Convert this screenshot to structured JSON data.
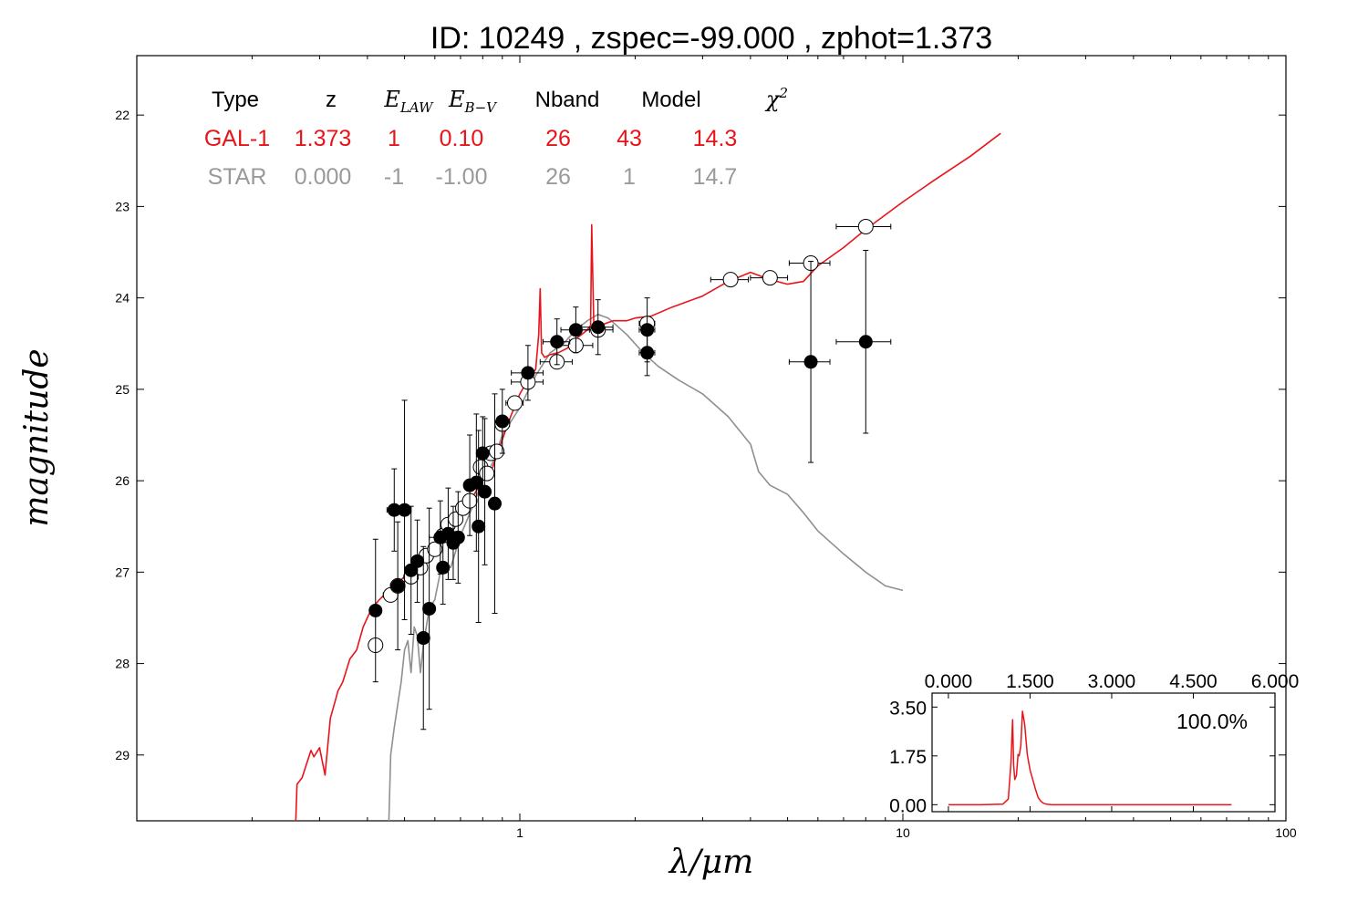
{
  "chart_data": [
    {
      "type": "scatter",
      "title": "ID:  10249 , zspec=-99.000 , zphot=1.373",
      "xlabel": "λ/μm",
      "ylabel": "magnitude",
      "xscale": "log",
      "xlim": [
        0.1,
        100
      ],
      "ylim": [
        29.72,
        21.35
      ],
      "x_tick_labels": [
        {
          "v": 1,
          "label": "1"
        },
        {
          "v": 10,
          "label": "10"
        },
        {
          "v": 100,
          "label": "100"
        }
      ],
      "y_ticks": [
        22,
        23,
        24,
        25,
        26,
        27,
        28,
        29
      ],
      "colors": {
        "galaxy": "#e8141a",
        "star": "#8f8f8f",
        "axes": "#000000"
      },
      "table": {
        "headers": [
          {
            "text": "Type",
            "math": false
          },
          {
            "text": "z",
            "math": false
          },
          {
            "text": "E",
            "sub": "LAW",
            "math": true
          },
          {
            "text": "E",
            "sub": "B−V",
            "math": true
          },
          {
            "text": "Nband",
            "math": false
          },
          {
            "text": "Model",
            "math": false
          },
          {
            "text": "χ",
            "sup": "2",
            "math": true
          }
        ],
        "rows": [
          {
            "color": "#e8141a",
            "cells": [
              "GAL-1",
              "1.373",
              "1",
              "0.10",
              "26",
              "43",
              "14.3"
            ]
          },
          {
            "color": "#9a9a9a",
            "cells": [
              "STAR",
              "0.000",
              "-1",
              "-1.00",
              "26",
              "1",
              "14.7"
            ]
          }
        ]
      },
      "series": [
        {
          "name": "GAL-1",
          "kind": "line",
          "color": "#e8141a",
          "x": [
            0.26,
            0.262,
            0.27,
            0.285,
            0.29,
            0.3,
            0.31,
            0.32,
            0.33,
            0.335,
            0.345,
            0.36,
            0.375,
            0.39,
            0.41,
            0.43,
            0.46,
            0.5,
            0.54,
            0.58,
            0.63,
            0.67,
            0.72,
            0.76,
            0.8,
            0.85,
            0.9,
            0.95,
            1.0,
            1.05,
            1.1,
            1.12,
            1.13,
            1.14,
            1.16,
            1.2,
            1.26,
            1.33,
            1.4,
            1.45,
            1.5,
            1.53,
            1.54,
            1.56,
            1.58,
            1.62,
            1.75,
            1.9,
            2.0,
            2.2,
            2.5,
            3.0,
            3.5,
            4.0,
            4.5,
            5.0,
            5.5,
            6.0,
            7.0,
            8.0,
            10.0,
            12.0,
            15.0,
            18.0
          ],
          "y": [
            29.72,
            29.32,
            29.25,
            28.95,
            29.02,
            28.92,
            29.22,
            28.6,
            28.4,
            28.3,
            28.2,
            27.95,
            27.85,
            27.6,
            27.4,
            27.3,
            27.18,
            27.05,
            26.92,
            26.78,
            26.6,
            26.45,
            26.3,
            26.15,
            26.0,
            25.85,
            25.55,
            25.28,
            25.05,
            24.9,
            24.78,
            24.4,
            23.9,
            24.6,
            24.65,
            24.62,
            24.6,
            24.55,
            24.45,
            24.4,
            24.35,
            24.3,
            23.2,
            24.3,
            24.32,
            24.3,
            24.25,
            24.25,
            24.22,
            24.2,
            24.1,
            23.98,
            23.82,
            23.72,
            23.8,
            23.85,
            23.82,
            23.65,
            23.45,
            23.25,
            22.95,
            22.72,
            22.45,
            22.2
          ]
        },
        {
          "name": "STAR",
          "kind": "line",
          "color": "#8f8f8f",
          "x": [
            0.455,
            0.46,
            0.47,
            0.49,
            0.5,
            0.51,
            0.52,
            0.53,
            0.54,
            0.55,
            0.56,
            0.58,
            0.6,
            0.62,
            0.64,
            0.66,
            0.7,
            0.75,
            0.8,
            0.85,
            0.9,
            1.0,
            1.1,
            1.2,
            1.3,
            1.4,
            1.5,
            1.6,
            1.7,
            1.9,
            2.1,
            2.3,
            2.6,
            3.0,
            3.5,
            4.0,
            4.2,
            4.5,
            5.0,
            5.5,
            6.0,
            7.0,
            8.0,
            9.0,
            10.0
          ],
          "y": [
            29.72,
            29.0,
            28.7,
            28.2,
            27.85,
            27.75,
            28.1,
            27.6,
            27.7,
            28.1,
            27.8,
            27.4,
            27.3,
            27.0,
            26.9,
            26.95,
            26.6,
            26.3,
            26.0,
            25.8,
            25.5,
            25.2,
            24.85,
            24.6,
            24.5,
            24.35,
            24.25,
            24.18,
            24.22,
            24.4,
            24.6,
            24.75,
            24.9,
            25.05,
            25.3,
            25.6,
            25.9,
            26.05,
            26.15,
            26.35,
            26.55,
            26.8,
            27.0,
            27.15,
            27.2
          ]
        },
        {
          "name": "open-points",
          "kind": "points",
          "marker": "open",
          "points": [
            {
              "x": 0.42,
              "y": 27.8,
              "xerr": 0.012
            },
            {
              "x": 0.46,
              "y": 27.25,
              "xerr": 0.02
            },
            {
              "x": 0.48,
              "y": 27.15,
              "xerr": 0.02
            },
            {
              "x": 0.52,
              "y": 27.05,
              "xerr": 0.02
            },
            {
              "x": 0.55,
              "y": 26.95,
              "xerr": 0.02
            },
            {
              "x": 0.57,
              "y": 26.82,
              "xerr": 0.02
            },
            {
              "x": 0.6,
              "y": 26.75,
              "xerr": 0.02
            },
            {
              "x": 0.63,
              "y": 26.6,
              "xerr": 0.02
            },
            {
              "x": 0.65,
              "y": 26.48,
              "xerr": 0.02
            },
            {
              "x": 0.68,
              "y": 26.42,
              "xerr": 0.02
            },
            {
              "x": 0.71,
              "y": 26.3,
              "xerr": 0.02
            },
            {
              "x": 0.74,
              "y": 26.22,
              "xerr": 0.02
            },
            {
              "x": 0.79,
              "y": 25.85,
              "xerr": 0.02
            },
            {
              "x": 0.82,
              "y": 25.92,
              "xerr": 0.02
            },
            {
              "x": 0.84,
              "y": 25.7,
              "xerr": 0.02
            },
            {
              "x": 0.87,
              "y": 25.68,
              "xerr": 0.02
            },
            {
              "x": 0.9,
              "y": 25.38,
              "xerr": 0.04
            },
            {
              "x": 0.97,
              "y": 25.15,
              "xerr": 0.05
            },
            {
              "x": 1.05,
              "y": 24.92,
              "xerr": 0.1
            },
            {
              "x": 1.25,
              "y": 24.7,
              "xerr": 0.12
            },
            {
              "x": 1.4,
              "y": 24.52,
              "xerr": 0.15
            },
            {
              "x": 1.6,
              "y": 24.35,
              "xerr": 0.15
            },
            {
              "x": 2.15,
              "y": 24.28,
              "xerr": 0.1
            },
            {
              "x": 3.55,
              "y": 23.8,
              "xerr": 0.4
            },
            {
              "x": 4.5,
              "y": 23.78,
              "xerr": 0.5
            },
            {
              "x": 5.75,
              "y": 23.62,
              "xerr": 0.7
            },
            {
              "x": 8.0,
              "y": 23.22,
              "xerr": 1.3
            }
          ]
        },
        {
          "name": "filled-points",
          "kind": "points",
          "marker": "filled",
          "points": [
            {
              "x": 0.42,
              "y": 27.42,
              "xerr": 0.012,
              "yerr": 0.78
            },
            {
              "x": 0.47,
              "y": 26.32,
              "xerr": 0.02,
              "yerr": 0.45
            },
            {
              "x": 0.48,
              "y": 27.15,
              "xerr": 0.02,
              "yerr": 0.7
            },
            {
              "x": 0.5,
              "y": 26.32,
              "xerr": 0.02,
              "yerr": 1.2
            },
            {
              "x": 0.52,
              "y": 26.98,
              "xerr": 0.02,
              "yerr": 0.7
            },
            {
              "x": 0.54,
              "y": 26.88,
              "xerr": 0.02,
              "yerr": 0.45
            },
            {
              "x": 0.56,
              "y": 27.72,
              "xerr": 0.02,
              "yerr": 1.0
            },
            {
              "x": 0.58,
              "y": 27.4,
              "xerr": 0.02,
              "yerr": 1.1
            },
            {
              "x": 0.62,
              "y": 26.62,
              "xerr": 0.04,
              "yerr": 0.4
            },
            {
              "x": 0.63,
              "y": 26.95,
              "xerr": 0.02,
              "yerr": 0.4
            },
            {
              "x": 0.65,
              "y": 26.58,
              "xerr": 0.02,
              "yerr": 0.5
            },
            {
              "x": 0.67,
              "y": 26.68,
              "xerr": 0.02,
              "yerr": 0.4
            },
            {
              "x": 0.69,
              "y": 26.62,
              "xerr": 0.02,
              "yerr": 0.5
            },
            {
              "x": 0.74,
              "y": 26.05,
              "xerr": 0.02,
              "yerr": 0.55
            },
            {
              "x": 0.77,
              "y": 26.02,
              "xerr": 0.02,
              "yerr": 0.75
            },
            {
              "x": 0.78,
              "y": 26.5,
              "xerr": 0.02,
              "yerr": 1.05
            },
            {
              "x": 0.8,
              "y": 25.7,
              "xerr": 0.02,
              "yerr": 0.4
            },
            {
              "x": 0.81,
              "y": 26.12,
              "xerr": 0.02,
              "yerr": 0.8
            },
            {
              "x": 0.86,
              "y": 26.25,
              "xerr": 0.02,
              "yerr": 1.2
            },
            {
              "x": 0.9,
              "y": 25.35,
              "xerr": 0.04,
              "yerr": 0.35
            },
            {
              "x": 1.05,
              "y": 24.82,
              "xerr": 0.1,
              "yerr": 0.3
            },
            {
              "x": 1.25,
              "y": 24.48,
              "xerr": 0.1,
              "yerr": 0.25
            },
            {
              "x": 1.4,
              "y": 24.35,
              "xerr": 0.12,
              "yerr": 0.25
            },
            {
              "x": 1.6,
              "y": 24.32,
              "xerr": 0.15,
              "yerr": 0.3
            },
            {
              "x": 2.15,
              "y": 24.35,
              "xerr": 0.1,
              "yerr": 0.35
            },
            {
              "x": 2.15,
              "y": 24.6,
              "xerr": 0.1,
              "yerr": 0.25
            },
            {
              "x": 5.75,
              "y": 24.7,
              "xerr": 0.7,
              "yerr": 1.1
            },
            {
              "x": 8.0,
              "y": 24.48,
              "xerr": 1.3,
              "yerr": 1.0
            }
          ]
        }
      ]
    },
    {
      "type": "line",
      "title": "",
      "percent_label": "100.0%",
      "xlim": [
        -0.3,
        6.0
      ],
      "ylim": [
        -0.25,
        4.0
      ],
      "x_ticks": [
        "0.000",
        "1.500",
        "3.000",
        "4.500",
        "6.000"
      ],
      "x_tick_values": [
        0.0,
        1.5,
        3.0,
        4.5,
        6.0
      ],
      "y_ticks": [
        "3.50",
        "1.75",
        "0.00"
      ],
      "y_tick_values": [
        3.5,
        1.75,
        0.0
      ],
      "series": [
        {
          "color": "#e8141a",
          "x": [
            0.0,
            0.6,
            1.0,
            1.1,
            1.15,
            1.18,
            1.2,
            1.22,
            1.25,
            1.28,
            1.3,
            1.33,
            1.36,
            1.4,
            1.45,
            1.5,
            1.55,
            1.6,
            1.65,
            1.7,
            1.75,
            1.8,
            1.9,
            2.0,
            2.5,
            3.0,
            4.5,
            5.2
          ],
          "y": [
            0.0,
            0.0,
            0.02,
            0.2,
            1.5,
            3.05,
            1.4,
            0.9,
            1.05,
            1.8,
            1.75,
            2.1,
            3.35,
            2.9,
            1.8,
            1.25,
            0.9,
            0.55,
            0.25,
            0.12,
            0.05,
            0.02,
            0.0,
            0.0,
            0.0,
            0.0,
            0.0,
            0.0
          ]
        }
      ]
    }
  ]
}
